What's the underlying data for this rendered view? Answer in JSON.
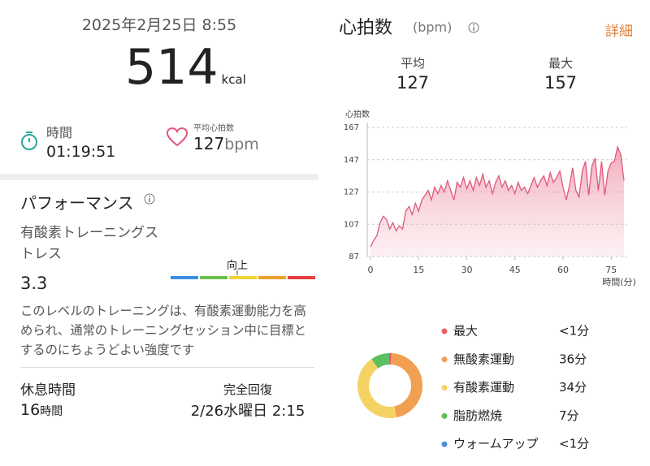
{
  "summary": {
    "datetime": "2025年2月25日 8:55",
    "calories": 514,
    "calories_unit": "kcal",
    "duration_label": "時間",
    "duration": "01:19:51",
    "avg_hr_label": "平均心拍数",
    "avg_hr": 127,
    "avg_hr_unit": "bpm"
  },
  "performance": {
    "title": "パフォーマンス",
    "stress_label": "有酸素トレーニングストレス",
    "stress_value": 3.3,
    "stress_level": "向上",
    "description": "このレベルのトレーニングは、有酸素運動能力を高められ、通常のトレーニングセッション中に目標とするのにちょうどよい強度です"
  },
  "recovery": {
    "rest_label": "休息時間",
    "rest_value": 16,
    "rest_unit": "時間",
    "full_label": "完全回復",
    "full_time": "2/26水曜日 2:15"
  },
  "heart_rate": {
    "title": "心拍数",
    "unit": "(bpm)",
    "detail": "詳細",
    "avg_label": "平均",
    "avg": 127,
    "max_label": "最大",
    "max": 157
  },
  "chart_data": [
    {
      "type": "line",
      "ylabel": "心拍数",
      "xlabel": "時間(分)",
      "color": "#e0587a",
      "grid": true,
      "xlim": [
        -1,
        80
      ],
      "xticks": [
        0,
        15,
        30,
        45,
        60,
        75
      ],
      "ylim": [
        87,
        167
      ],
      "yticks": [
        87,
        107,
        127,
        147,
        167
      ],
      "x": [
        0,
        1,
        2,
        3,
        4,
        5,
        6,
        7,
        8,
        9,
        10,
        11,
        12,
        13,
        14,
        15,
        16,
        17,
        18,
        19,
        20,
        21,
        22,
        23,
        24,
        25,
        26,
        27,
        28,
        29,
        30,
        31,
        32,
        33,
        34,
        35,
        36,
        37,
        38,
        39,
        40,
        41,
        42,
        43,
        44,
        45,
        46,
        47,
        48,
        49,
        50,
        51,
        52,
        53,
        54,
        55,
        56,
        57,
        58,
        59,
        60,
        61,
        62,
        63,
        64,
        65,
        66,
        67,
        68,
        69,
        70,
        71,
        72,
        73,
        74,
        75,
        76,
        77,
        78,
        79
      ],
      "values": [
        93,
        97,
        100,
        108,
        112,
        110,
        104,
        108,
        103,
        106,
        104,
        115,
        118,
        113,
        120,
        115,
        122,
        125,
        128,
        122,
        130,
        126,
        131,
        127,
        134,
        128,
        122,
        133,
        130,
        136,
        129,
        134,
        128,
        136,
        131,
        138,
        130,
        134,
        126,
        133,
        137,
        130,
        134,
        128,
        131,
        126,
        133,
        128,
        130,
        126,
        131,
        136,
        130,
        134,
        137,
        131,
        139,
        133,
        136,
        140,
        130,
        122,
        131,
        142,
        128,
        124,
        140,
        146,
        125,
        143,
        148,
        128,
        146,
        125,
        140,
        145,
        146,
        155,
        150,
        134
      ]
    },
    {
      "type": "donut",
      "categories": [
        "最大",
        "無酸素運動",
        "有酸素運動",
        "脂肪燃焼",
        "ウォームアップ"
      ],
      "values": [
        0.5,
        36,
        34,
        7,
        0.5
      ],
      "value_labels": [
        "<1分",
        "36分",
        "34分",
        "7分",
        "<1分"
      ],
      "colors": [
        "#e8606a",
        "#f0a050",
        "#f5d264",
        "#5cc060",
        "#4a90d9"
      ]
    }
  ]
}
